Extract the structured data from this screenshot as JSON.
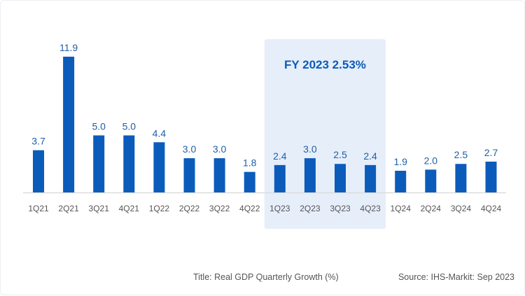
{
  "chart_data": {
    "type": "bar",
    "categories": [
      "1Q21",
      "2Q21",
      "3Q21",
      "4Q21",
      "1Q22",
      "2Q22",
      "3Q22",
      "4Q22",
      "1Q23",
      "2Q23",
      "3Q23",
      "4Q23",
      "1Q24",
      "2Q24",
      "3Q24",
      "4Q24"
    ],
    "values": [
      3.7,
      11.9,
      5.0,
      5.0,
      4.4,
      3.0,
      3.0,
      1.8,
      2.4,
      3.0,
      2.5,
      2.4,
      1.9,
      2.0,
      2.5,
      2.7
    ],
    "data_labels": [
      "3.7",
      "11.9",
      "5.0",
      "5.0",
      "4.4",
      "3.0",
      "3.0",
      "1.8",
      "2.4",
      "3.0",
      "2.5",
      "2.4",
      "1.9",
      "2.0",
      "2.5",
      "2.7"
    ],
    "ylim": [
      0,
      12
    ],
    "grid": false,
    "bar_color": "#0b5cba",
    "highlight": {
      "categories": [
        "1Q23",
        "2Q23",
        "3Q23",
        "4Q23"
      ],
      "label": "FY 2023 2.53%",
      "color": "#e6eefa",
      "label_color": "#0b5cba"
    }
  },
  "footer": {
    "title": "Title: Real GDP Quarterly Growth (%)",
    "source": "Source: IHS-Markit: Sep 2023"
  }
}
